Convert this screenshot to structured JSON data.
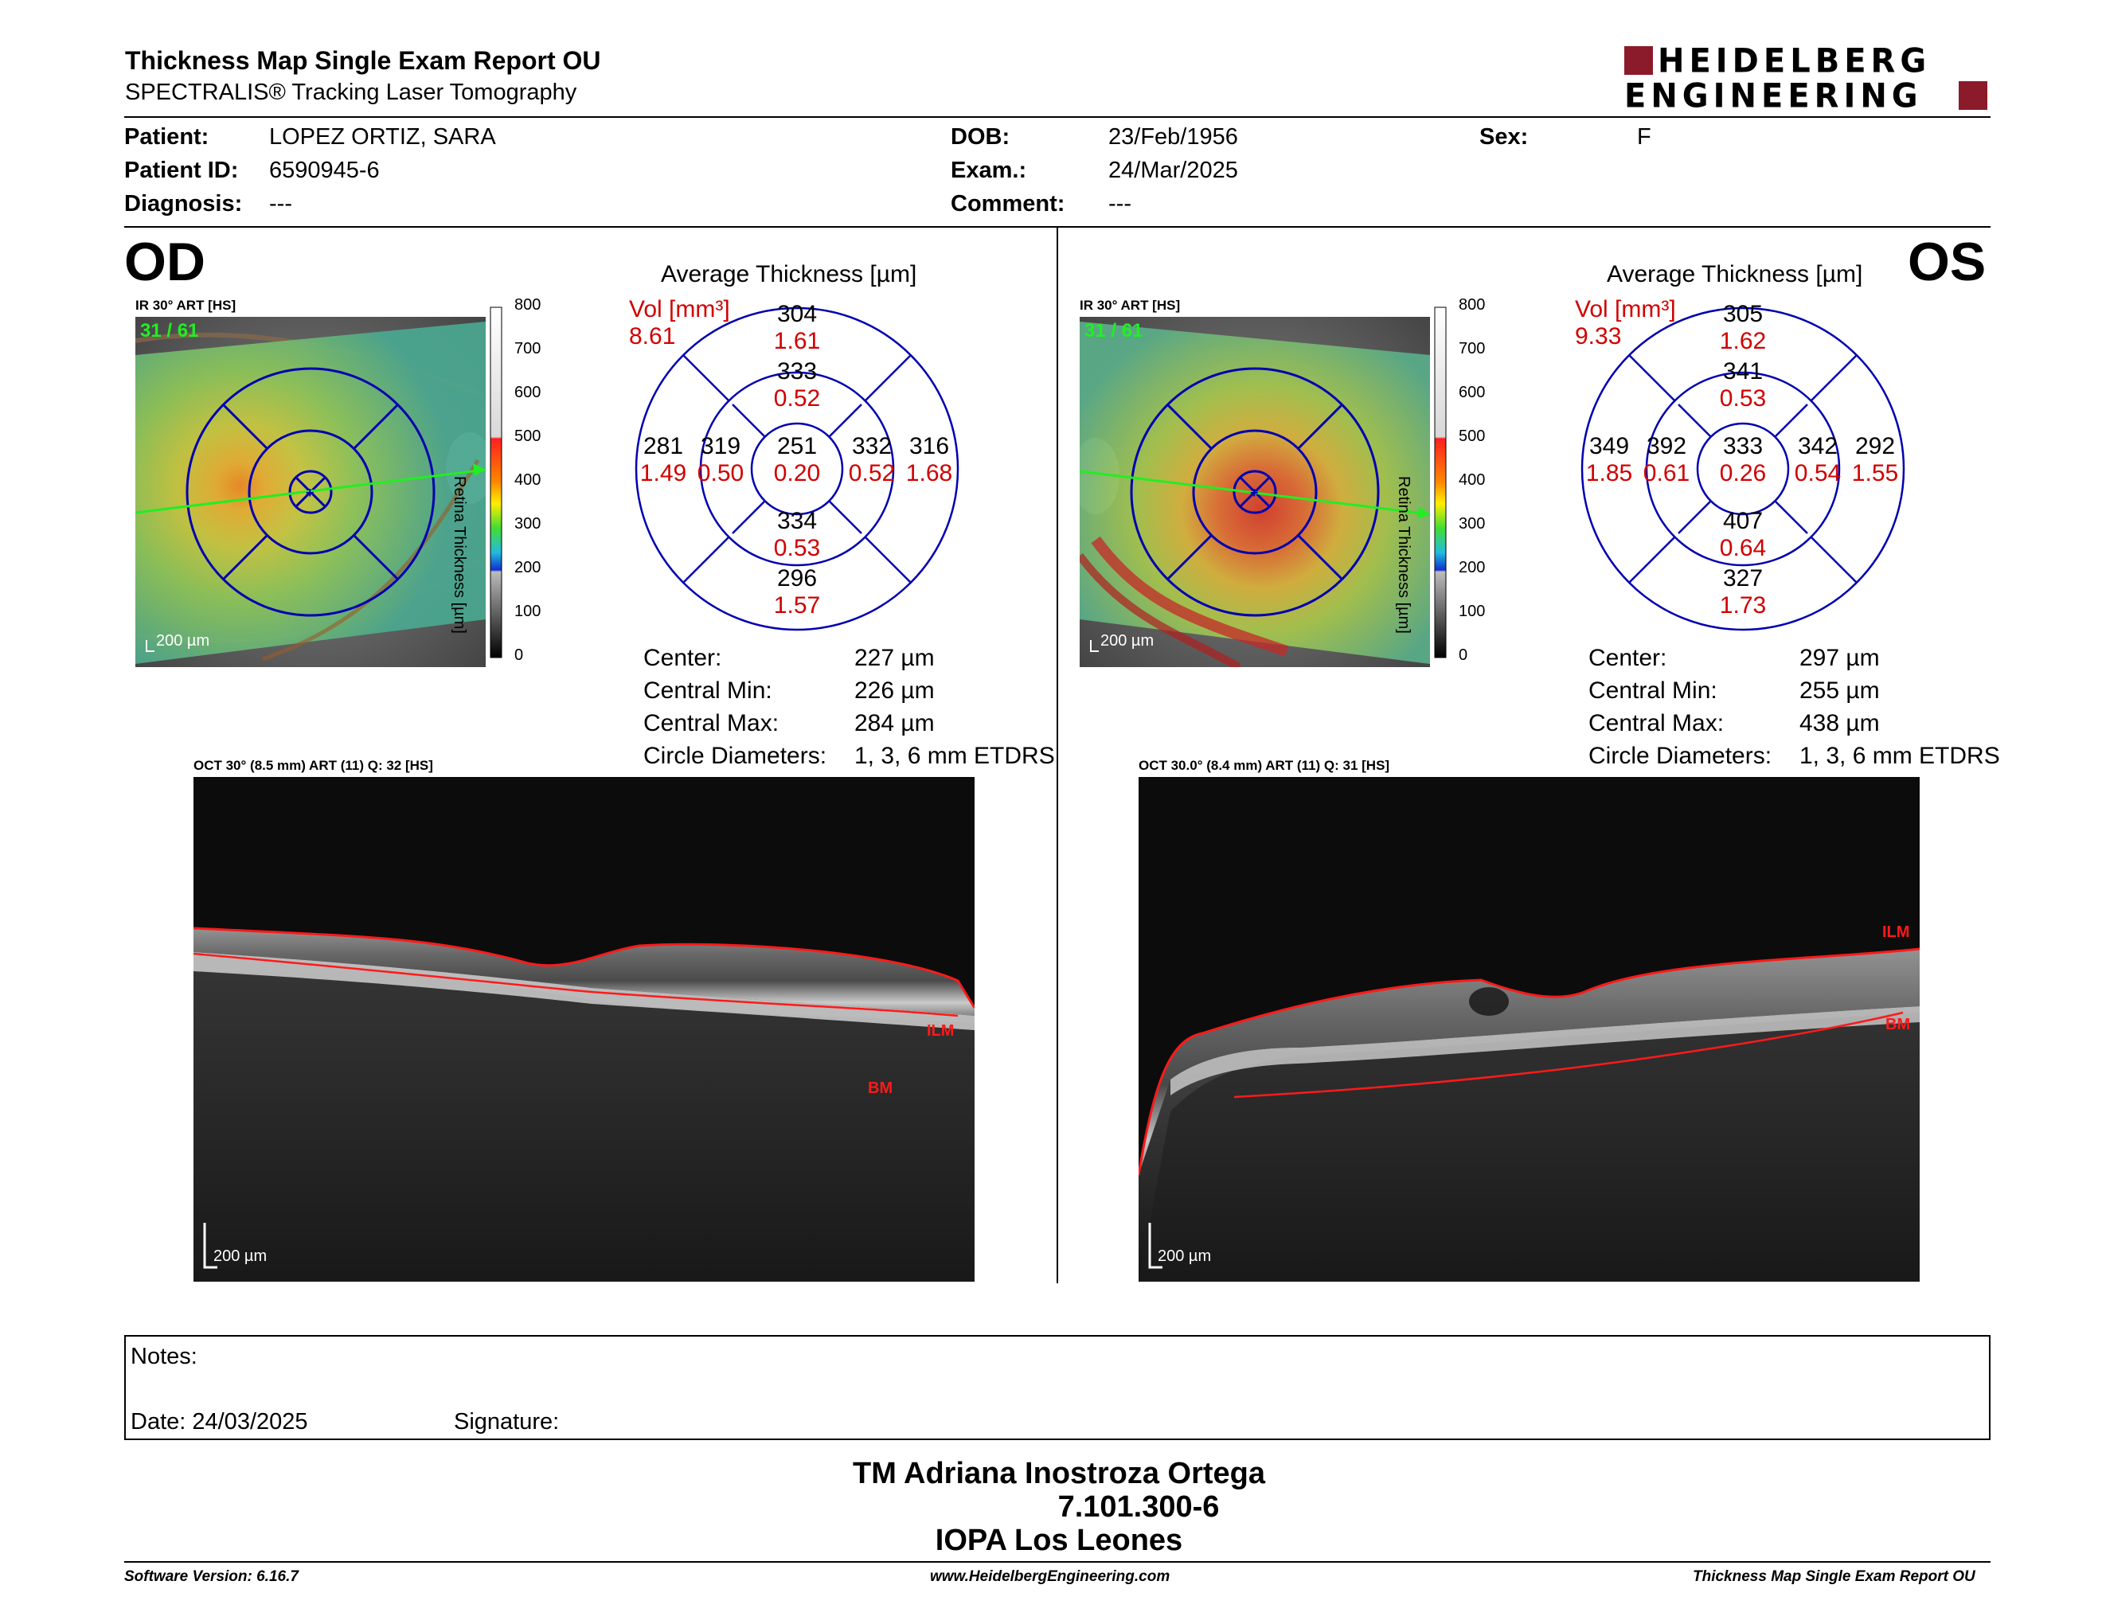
{
  "header": {
    "title": "Thickness Map Single Exam Report OU",
    "subtitle": "SPECTRALIS® Tracking Laser Tomography",
    "logo_line1": "HEIDELBERG",
    "logo_line2": "ENGINEERING",
    "logo_color": "#8b1a2b"
  },
  "patient": {
    "patient_label": "Patient:",
    "patient": "LOPEZ ORTIZ, SARA",
    "id_label": "Patient ID:",
    "id": "6590945-6",
    "diagnosis_label": "Diagnosis:",
    "diagnosis": "---",
    "dob_label": "DOB:",
    "dob": "23/Feb/1956",
    "exam_label": "Exam.:",
    "exam": "24/Mar/2025",
    "comment_label": "Comment:",
    "comment": "---",
    "sex_label": "Sex:",
    "sex": "F"
  },
  "od": {
    "eye": "OD",
    "ir_label": "IR 30° ART [HS]",
    "frames": "31 / 61",
    "scale": "200 µm",
    "avg_title": "Average Thickness [µm]",
    "vol_label": "Vol [mm³]",
    "vol_total": "8.61",
    "etdrs": {
      "center_t": "251",
      "center_v": "0.20",
      "inner_sup_t": "333",
      "inner_sup_v": "0.52",
      "inner_inf_t": "334",
      "inner_inf_v": "0.53",
      "inner_left_t": "319",
      "inner_left_v": "0.50",
      "inner_right_t": "332",
      "inner_right_v": "0.52",
      "outer_sup_t": "304",
      "outer_sup_v": "1.61",
      "outer_inf_t": "296",
      "outer_inf_v": "1.57",
      "outer_left_t": "281",
      "outer_left_v": "1.49",
      "outer_right_t": "316",
      "outer_right_v": "1.68"
    },
    "stats": {
      "center_label": "Center:",
      "center": "227 µm",
      "min_label": "Central Min:",
      "min": "226 µm",
      "max_label": "Central Max:",
      "max": "284 µm",
      "diam_label": "Circle Diameters:",
      "diam": "1, 3, 6 mm ETDRS"
    },
    "oct_label": "OCT 30° (8.5 mm) ART (11) Q: 32 [HS]",
    "ilm": "ILM",
    "bm": "BM"
  },
  "os": {
    "eye": "OS",
    "ir_label": "IR 30° ART [HS]",
    "frames": "31 / 61",
    "scale": "200 µm",
    "avg_title": "Average Thickness [µm]",
    "vol_label": "Vol [mm³]",
    "vol_total": "9.33",
    "etdrs": {
      "center_t": "333",
      "center_v": "0.26",
      "inner_sup_t": "341",
      "inner_sup_v": "0.53",
      "inner_inf_t": "407",
      "inner_inf_v": "0.64",
      "inner_left_t": "392",
      "inner_left_v": "0.61",
      "inner_right_t": "342",
      "inner_right_v": "0.54",
      "outer_sup_t": "305",
      "outer_sup_v": "1.62",
      "outer_inf_t": "327",
      "outer_inf_v": "1.73",
      "outer_left_t": "349",
      "outer_left_v": "1.85",
      "outer_right_t": "292",
      "outer_right_v": "1.55"
    },
    "stats": {
      "center_label": "Center:",
      "center": "297 µm",
      "min_label": "Central Min:",
      "min": "255 µm",
      "max_label": "Central Max:",
      "max": "438 µm",
      "diam_label": "Circle Diameters:",
      "diam": "1, 3, 6 mm ETDRS"
    },
    "oct_label": "OCT 30.0° (8.4 mm) ART (11) Q: 31 [HS]",
    "ilm": "ILM",
    "bm": "BM"
  },
  "colorbar": {
    "title": "Retina Thickness [µm]",
    "ticks": [
      "800",
      "700",
      "600",
      "500",
      "400",
      "300",
      "200",
      "100",
      "0"
    ]
  },
  "notes": {
    "notes_label": "Notes:",
    "date_label": "Date: 24/03/2025",
    "signature_label": "Signature:"
  },
  "signature": {
    "line1": "TM Adriana Inostroza Ortega",
    "line2": "7.101.300-6",
    "line3": "IOPA Los Leones"
  },
  "footer": {
    "software": "Software Version: 6.16.7",
    "url": "www.HeidelbergEngineering.com",
    "report": "Thickness Map Single Exam Report OU"
  },
  "colors": {
    "vol_red": "#d00000",
    "grid_blue": "#0000b0",
    "ilm_red": "#ff1a1a"
  }
}
